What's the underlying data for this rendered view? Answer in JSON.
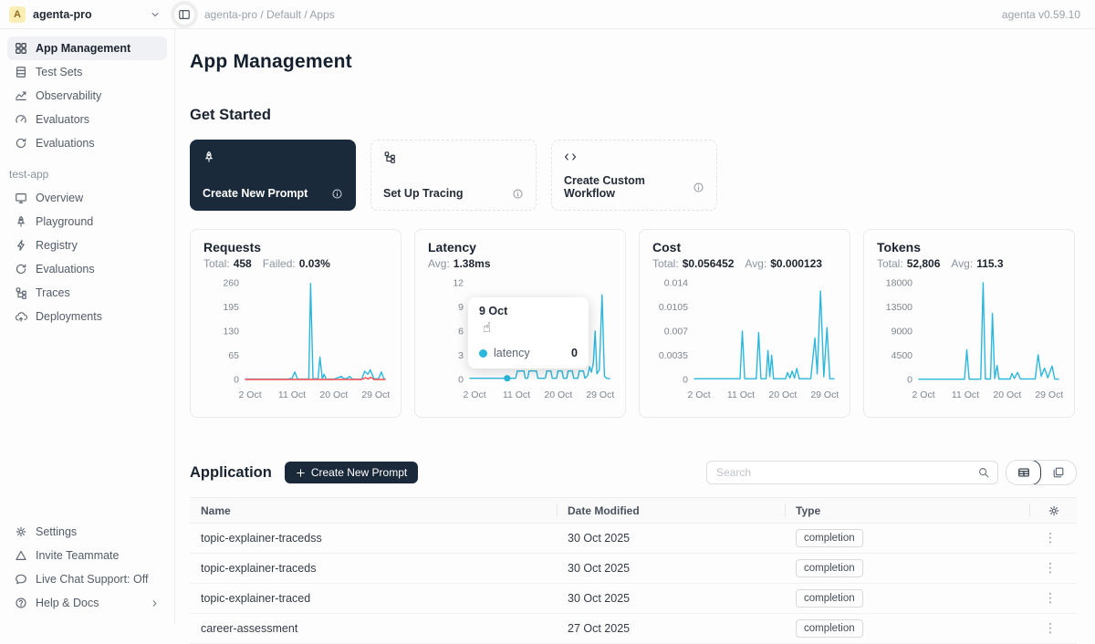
{
  "header": {
    "avatar_letter": "A",
    "workspace": "agenta-pro",
    "breadcrumb": "agenta-pro / Default / Apps",
    "version": "agenta v0.59.10"
  },
  "sidebar": {
    "top_items": [
      {
        "label": "App Management",
        "icon": "grid-icon",
        "active": true
      },
      {
        "label": "Test Sets",
        "icon": "test-sets-icon"
      },
      {
        "label": "Observability",
        "icon": "observability-icon"
      },
      {
        "label": "Evaluators",
        "icon": "gauge-icon"
      },
      {
        "label": "Evaluations",
        "icon": "evaluations-icon"
      }
    ],
    "section_label": "test-app",
    "app_items": [
      {
        "label": "Overview",
        "icon": "monitor-icon"
      },
      {
        "label": "Playground",
        "icon": "rocket-icon"
      },
      {
        "label": "Registry",
        "icon": "bolt-icon"
      },
      {
        "label": "Evaluations",
        "icon": "evaluations-icon"
      },
      {
        "label": "Traces",
        "icon": "traces-icon"
      },
      {
        "label": "Deployments",
        "icon": "cloud-icon"
      }
    ],
    "bottom_items": [
      {
        "label": "Settings",
        "icon": "gear-icon"
      },
      {
        "label": "Invite Teammate",
        "icon": "invite-icon"
      },
      {
        "label": "Live Chat Support: Off",
        "icon": "chat-icon"
      },
      {
        "label": "Help & Docs",
        "icon": "help-icon",
        "chevron": true
      }
    ]
  },
  "main": {
    "title": "App Management",
    "get_started": {
      "heading": "Get Started",
      "cards": [
        {
          "label": "Create New Prompt",
          "icon": "rocket-icon",
          "dark": true
        },
        {
          "label": "Set Up Tracing",
          "icon": "traces-icon"
        },
        {
          "label": "Create Custom Workflow",
          "icon": "code-icon"
        }
      ]
    },
    "application": {
      "heading": "Application",
      "button_label": "Create New Prompt",
      "search_placeholder": "Search",
      "table": {
        "headers": [
          "Name",
          "Date Modified",
          "Type"
        ],
        "rows": [
          {
            "name": "topic-explainer-tracedss",
            "date": "30 Oct 2025",
            "type": "completion"
          },
          {
            "name": "topic-explainer-traceds",
            "date": "30 Oct 2025",
            "type": "completion"
          },
          {
            "name": "topic-explainer-traced",
            "date": "30 Oct 2025",
            "type": "completion"
          },
          {
            "name": "career-assessment",
            "date": "27 Oct 2025",
            "type": "completion"
          }
        ]
      }
    }
  },
  "colors": {
    "accent_dark": "#1b2a3a",
    "chart_line": "#2bb7dc",
    "chart_fail": "#ff4d4f"
  },
  "chart_data": [
    {
      "id": "requests",
      "type": "line",
      "title": "Requests",
      "stats": [
        {
          "label": "Total:",
          "value": "458"
        },
        {
          "label": "Failed:",
          "value": "0.03%"
        }
      ],
      "xlim": [
        1,
        31
      ],
      "ylim": [
        0,
        260
      ],
      "yticks": [
        {
          "v": 0,
          "label": "0"
        },
        {
          "v": 65,
          "label": "65"
        },
        {
          "v": 130,
          "label": "130"
        },
        {
          "v": 195,
          "label": "195"
        },
        {
          "v": 260,
          "label": "260"
        }
      ],
      "xticks": [
        {
          "day": 2,
          "label": "2 Oct"
        },
        {
          "day": 11,
          "label": "11 Oct"
        },
        {
          "day": 20,
          "label": "20 Oct"
        },
        {
          "day": 29,
          "label": "29 Oct"
        }
      ],
      "grid": false,
      "legend": false,
      "series": [
        {
          "name": "success",
          "color": "#2bb7dc",
          "points": [
            [
              1,
              1
            ],
            [
              10,
              1
            ],
            [
              11,
              3
            ],
            [
              11.6,
              20
            ],
            [
              12.2,
              1
            ],
            [
              14.6,
              1
            ],
            [
              15,
              258
            ],
            [
              15.5,
              2
            ],
            [
              16.6,
              2
            ],
            [
              17,
              60
            ],
            [
              17.5,
              2
            ],
            [
              17.9,
              14
            ],
            [
              18.3,
              1
            ],
            [
              20,
              1
            ],
            [
              21.6,
              8
            ],
            [
              22.2,
              2
            ],
            [
              22.8,
              3
            ],
            [
              23.4,
              8
            ],
            [
              24,
              1
            ],
            [
              26,
              1
            ],
            [
              26.6,
              22
            ],
            [
              27.3,
              14
            ],
            [
              27.8,
              26
            ],
            [
              28.6,
              2
            ],
            [
              29.6,
              2
            ],
            [
              30.2,
              20
            ],
            [
              30.8,
              1
            ],
            [
              31,
              1
            ]
          ]
        },
        {
          "name": "failed",
          "color": "#ff4d4f",
          "points": [
            [
              1,
              0
            ],
            [
              26,
              0
            ],
            [
              26.8,
              5
            ],
            [
              27.4,
              1
            ],
            [
              27.9,
              6
            ],
            [
              28.6,
              0
            ],
            [
              31,
              0
            ]
          ]
        }
      ]
    },
    {
      "id": "latency",
      "type": "line",
      "title": "Latency",
      "stats": [
        {
          "label": "Avg:",
          "value": "1.38ms"
        }
      ],
      "xlim": [
        1,
        31
      ],
      "ylim": [
        0,
        12
      ],
      "yticks": [
        {
          "v": 0,
          "label": "0"
        },
        {
          "v": 3,
          "label": "3"
        },
        {
          "v": 6,
          "label": "6"
        },
        {
          "v": 9,
          "label": "9"
        },
        {
          "v": 12,
          "label": "12"
        }
      ],
      "xticks": [
        {
          "day": 2,
          "label": "2 Oct"
        },
        {
          "day": 11,
          "label": "11 Oct"
        },
        {
          "day": 20,
          "label": "20 Oct"
        },
        {
          "day": 29,
          "label": "29 Oct"
        }
      ],
      "grid": false,
      "legend": false,
      "series": [
        {
          "name": "latency",
          "color": "#2bb7dc",
          "points": [
            [
              1,
              0.15
            ],
            [
              10.8,
              0.15
            ],
            [
              11.2,
              1.05
            ],
            [
              12.6,
              1.05
            ],
            [
              12.9,
              0.15
            ],
            [
              13.4,
              0.15
            ],
            [
              13.7,
              1.05
            ],
            [
              15.3,
              1.05
            ],
            [
              15.6,
              0.15
            ],
            [
              17.2,
              0.15
            ],
            [
              17.5,
              1.05
            ],
            [
              18.4,
              1.05
            ],
            [
              18.7,
              0.15
            ],
            [
              19.6,
              0.15
            ],
            [
              19.9,
              1.05
            ],
            [
              20.8,
              1.05
            ],
            [
              21.1,
              0.15
            ],
            [
              21.8,
              0.15
            ],
            [
              22.1,
              1.05
            ],
            [
              23,
              1.05
            ],
            [
              23.3,
              0.15
            ],
            [
              24.2,
              0.15
            ],
            [
              24.5,
              1.05
            ],
            [
              25.4,
              1.05
            ],
            [
              25.7,
              0.15
            ],
            [
              26.3,
              0.5
            ],
            [
              26.7,
              1.6
            ],
            [
              27.1,
              0.9
            ],
            [
              27.5,
              2
            ],
            [
              27.9,
              6
            ],
            [
              28.3,
              0.7
            ],
            [
              28.8,
              1.2
            ],
            [
              29.4,
              10.5
            ],
            [
              29.9,
              0.4
            ],
            [
              30.4,
              0.15
            ],
            [
              31,
              0.1
            ]
          ]
        }
      ],
      "marker": {
        "day": 9,
        "value": 0.15,
        "color": "#2bb7dc"
      },
      "tooltip": {
        "header": "9 Oct",
        "rows": [
          {
            "label": "latency",
            "value": "0",
            "color": "#2bb7dc"
          }
        ]
      }
    },
    {
      "id": "cost",
      "type": "line",
      "title": "Cost",
      "stats": [
        {
          "label": "Total:",
          "value": "$0.056452"
        },
        {
          "label": "Avg:",
          "value": "$0.000123"
        }
      ],
      "xlim": [
        1,
        31
      ],
      "ylim": [
        0,
        0.014
      ],
      "yticks": [
        {
          "v": 0,
          "label": "0"
        },
        {
          "v": 0.0035,
          "label": "0.0035"
        },
        {
          "v": 0.007,
          "label": "0.007"
        },
        {
          "v": 0.0105,
          "label": "0.0105"
        },
        {
          "v": 0.014,
          "label": "0.014"
        }
      ],
      "xticks": [
        {
          "day": 2,
          "label": "2 Oct"
        },
        {
          "day": 11,
          "label": "11 Oct"
        },
        {
          "day": 20,
          "label": "20 Oct"
        },
        {
          "day": 29,
          "label": "29 Oct"
        }
      ],
      "grid": false,
      "legend": false,
      "series": [
        {
          "name": "cost",
          "color": "#2bb7dc",
          "points": [
            [
              1,
              0.0001
            ],
            [
              10.8,
              0.0001
            ],
            [
              11.3,
              0.007
            ],
            [
              11.8,
              0.0001
            ],
            [
              14.3,
              0.0001
            ],
            [
              14.8,
              0.0068
            ],
            [
              15.3,
              0.0001
            ],
            [
              16.4,
              0.0001
            ],
            [
              16.8,
              0.0042
            ],
            [
              17.2,
              0.0004
            ],
            [
              17.6,
              0.0035
            ],
            [
              18,
              0.0001
            ],
            [
              20.6,
              0.0001
            ],
            [
              21,
              0.001
            ],
            [
              21.5,
              0.0002
            ],
            [
              22,
              0.0012
            ],
            [
              22.5,
              0.0002
            ],
            [
              23,
              0.0016
            ],
            [
              23.5,
              0.0001
            ],
            [
              26,
              0.0001
            ],
            [
              26.9,
              0.006
            ],
            [
              27.4,
              0.0008
            ],
            [
              28.1,
              0.0128
            ],
            [
              28.8,
              0.0004
            ],
            [
              29.5,
              0.0075
            ],
            [
              30.1,
              0.0001
            ],
            [
              31,
              0.0001
            ]
          ]
        }
      ]
    },
    {
      "id": "tokens",
      "type": "line",
      "title": "Tokens",
      "stats": [
        {
          "label": "Total:",
          "value": "52,806"
        },
        {
          "label": "Avg:",
          "value": "115.3"
        }
      ],
      "xlim": [
        1,
        31
      ],
      "ylim": [
        0,
        18000
      ],
      "yticks": [
        {
          "v": 0,
          "label": "0"
        },
        {
          "v": 4500,
          "label": "4500"
        },
        {
          "v": 9000,
          "label": "9000"
        },
        {
          "v": 13500,
          "label": "13500"
        },
        {
          "v": 18000,
          "label": "18000"
        }
      ],
      "xticks": [
        {
          "day": 2,
          "label": "2 Oct"
        },
        {
          "day": 11,
          "label": "11 Oct"
        },
        {
          "day": 20,
          "label": "20 Oct"
        },
        {
          "day": 29,
          "label": "29 Oct"
        }
      ],
      "grid": false,
      "legend": false,
      "series": [
        {
          "name": "tokens",
          "color": "#2bb7dc",
          "points": [
            [
              1,
              50
            ],
            [
              10.8,
              50
            ],
            [
              11.3,
              5500
            ],
            [
              11.8,
              50
            ],
            [
              14.3,
              50
            ],
            [
              14.8,
              18000
            ],
            [
              15.3,
              80
            ],
            [
              16.4,
              80
            ],
            [
              16.8,
              12300
            ],
            [
              17.3,
              150
            ],
            [
              17.8,
              2600
            ],
            [
              18.2,
              80
            ],
            [
              20.6,
              80
            ],
            [
              21,
              1100
            ],
            [
              21.5,
              200
            ],
            [
              22.2,
              1300
            ],
            [
              22.8,
              100
            ],
            [
              26,
              100
            ],
            [
              26.6,
              4600
            ],
            [
              27.3,
              600
            ],
            [
              28,
              2100
            ],
            [
              28.7,
              300
            ],
            [
              29.6,
              2500
            ],
            [
              30.2,
              80
            ],
            [
              31,
              50
            ]
          ]
        }
      ]
    }
  ]
}
